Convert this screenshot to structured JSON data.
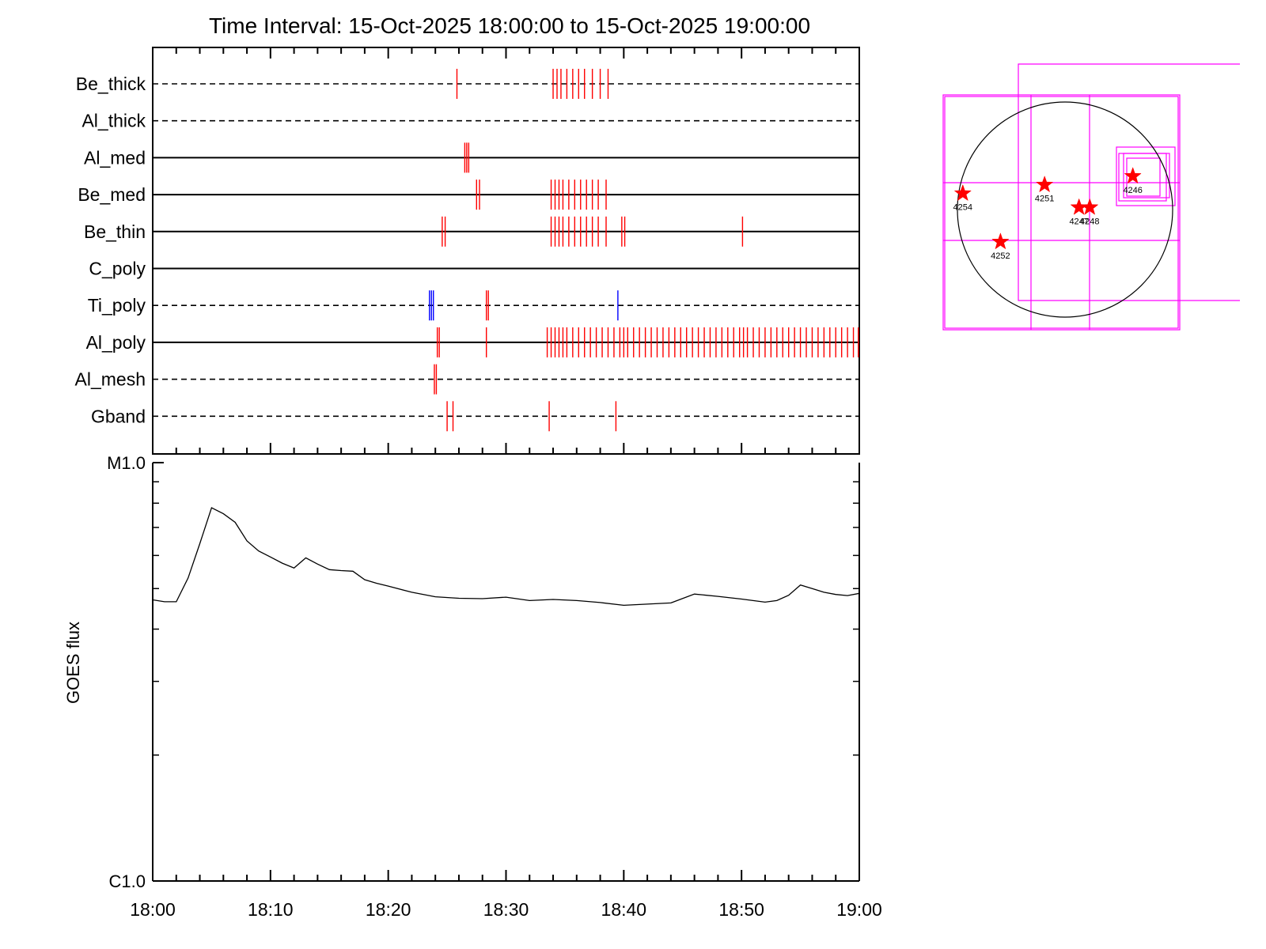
{
  "chart_data": [
    {
      "type": "timeline",
      "title": "Time Interval: 15-Oct-2025 18:00:00 to 15-Oct-2025 19:00:00",
      "x_range": [
        "18:00",
        "19:00"
      ],
      "rows": [
        {
          "label": "Be_thick",
          "line": "dashed",
          "ticks": [
            {
              "t": "18:25:50",
              "c": "red"
            },
            {
              "t": "18:34:00",
              "c": "red"
            },
            {
              "t": "18:34:20",
              "c": "red"
            },
            {
              "t": "18:34:40",
              "c": "red"
            },
            {
              "t": "18:35:10",
              "c": "red"
            },
            {
              "t": "18:35:40",
              "c": "red"
            },
            {
              "t": "18:36:10",
              "c": "red"
            },
            {
              "t": "18:36:40",
              "c": "red"
            },
            {
              "t": "18:37:20",
              "c": "red"
            },
            {
              "t": "18:38:00",
              "c": "red"
            },
            {
              "t": "18:38:40",
              "c": "red"
            }
          ]
        },
        {
          "label": "Al_thick",
          "line": "dashed",
          "ticks": []
        },
        {
          "label": "Al_med",
          "line": "solid",
          "ticks": [
            {
              "t": "18:26:30",
              "c": "red"
            },
            {
              "t": "18:26:40",
              "c": "red"
            },
            {
              "t": "18:26:50",
              "c": "red"
            }
          ]
        },
        {
          "label": "Be_med",
          "line": "solid",
          "ticks": [
            {
              "t": "18:27:30",
              "c": "red"
            },
            {
              "t": "18:27:45",
              "c": "red"
            },
            {
              "t": "18:33:50",
              "c": "red"
            },
            {
              "t": "18:34:10",
              "c": "red"
            },
            {
              "t": "18:34:30",
              "c": "red"
            },
            {
              "t": "18:34:50",
              "c": "red"
            },
            {
              "t": "18:35:20",
              "c": "red"
            },
            {
              "t": "18:35:50",
              "c": "red"
            },
            {
              "t": "18:36:20",
              "c": "red"
            },
            {
              "t": "18:36:50",
              "c": "red"
            },
            {
              "t": "18:37:20",
              "c": "red"
            },
            {
              "t": "18:37:50",
              "c": "red"
            },
            {
              "t": "18:38:30",
              "c": "red"
            }
          ]
        },
        {
          "label": "Be_thin",
          "line": "solid",
          "ticks": [
            {
              "t": "18:24:35",
              "c": "red"
            },
            {
              "t": "18:24:50",
              "c": "red"
            },
            {
              "t": "18:33:50",
              "c": "red"
            },
            {
              "t": "18:34:10",
              "c": "red"
            },
            {
              "t": "18:34:30",
              "c": "red"
            },
            {
              "t": "18:34:50",
              "c": "red"
            },
            {
              "t": "18:35:20",
              "c": "red"
            },
            {
              "t": "18:35:50",
              "c": "red"
            },
            {
              "t": "18:36:20",
              "c": "red"
            },
            {
              "t": "18:36:50",
              "c": "red"
            },
            {
              "t": "18:37:20",
              "c": "red"
            },
            {
              "t": "18:37:50",
              "c": "red"
            },
            {
              "t": "18:38:30",
              "c": "red"
            },
            {
              "t": "18:39:50",
              "c": "red"
            },
            {
              "t": "18:40:05",
              "c": "red"
            },
            {
              "t": "18:50:05",
              "c": "red"
            }
          ]
        },
        {
          "label": "C_poly",
          "line": "solid",
          "ticks": []
        },
        {
          "label": "Ti_poly",
          "line": "dashed",
          "ticks": [
            {
              "t": "18:23:30",
              "c": "blue"
            },
            {
              "t": "18:23:40",
              "c": "blue"
            },
            {
              "t": "18:23:50",
              "c": "blue"
            },
            {
              "t": "18:28:20",
              "c": "red"
            },
            {
              "t": "18:28:30",
              "c": "red"
            },
            {
              "t": "18:39:30",
              "c": "blue"
            }
          ]
        },
        {
          "label": "Al_poly",
          "line": "solid",
          "ticks": [
            {
              "t": "18:24:10",
              "c": "red"
            },
            {
              "t": "18:24:20",
              "c": "red"
            },
            {
              "t": "18:28:20",
              "c": "red"
            },
            {
              "t": "18:33:30",
              "c": "red"
            },
            {
              "t": "18:33:50",
              "c": "red"
            },
            {
              "t": "18:34:10",
              "c": "red"
            },
            {
              "t": "18:34:30",
              "c": "red"
            },
            {
              "t": "18:34:50",
              "c": "red"
            },
            {
              "t": "18:35:10",
              "c": "red"
            },
            {
              "t": "18:35:40",
              "c": "red"
            },
            {
              "t": "18:36:10",
              "c": "red"
            },
            {
              "t": "18:36:40",
              "c": "red"
            },
            {
              "t": "18:37:10",
              "c": "red"
            },
            {
              "t": "18:37:40",
              "c": "red"
            },
            {
              "t": "18:38:10",
              "c": "red"
            },
            {
              "t": "18:38:40",
              "c": "red"
            },
            {
              "t": "18:39:10",
              "c": "red"
            },
            {
              "t": "18:39:40",
              "c": "red"
            },
            {
              "t": "18:40:00",
              "c": "red"
            },
            {
              "t": "18:40:20",
              "c": "red"
            },
            {
              "t": "18:40:50",
              "c": "red"
            },
            {
              "t": "18:41:20",
              "c": "red"
            },
            {
              "t": "18:41:50",
              "c": "red"
            },
            {
              "t": "18:42:20",
              "c": "red"
            },
            {
              "t": "18:42:50",
              "c": "red"
            },
            {
              "t": "18:43:20",
              "c": "red"
            },
            {
              "t": "18:43:50",
              "c": "red"
            },
            {
              "t": "18:44:20",
              "c": "red"
            },
            {
              "t": "18:44:50",
              "c": "red"
            },
            {
              "t": "18:45:20",
              "c": "red"
            },
            {
              "t": "18:45:50",
              "c": "red"
            },
            {
              "t": "18:46:20",
              "c": "red"
            },
            {
              "t": "18:46:50",
              "c": "red"
            },
            {
              "t": "18:47:20",
              "c": "red"
            },
            {
              "t": "18:47:50",
              "c": "red"
            },
            {
              "t": "18:48:20",
              "c": "red"
            },
            {
              "t": "18:48:50",
              "c": "red"
            },
            {
              "t": "18:49:20",
              "c": "red"
            },
            {
              "t": "18:49:50",
              "c": "red"
            },
            {
              "t": "18:50:10",
              "c": "red"
            },
            {
              "t": "18:50:30",
              "c": "red"
            },
            {
              "t": "18:51:00",
              "c": "red"
            },
            {
              "t": "18:51:30",
              "c": "red"
            },
            {
              "t": "18:52:00",
              "c": "red"
            },
            {
              "t": "18:52:30",
              "c": "red"
            },
            {
              "t": "18:53:00",
              "c": "red"
            },
            {
              "t": "18:53:30",
              "c": "red"
            },
            {
              "t": "18:54:00",
              "c": "red"
            },
            {
              "t": "18:54:30",
              "c": "red"
            },
            {
              "t": "18:55:00",
              "c": "red"
            },
            {
              "t": "18:55:30",
              "c": "red"
            },
            {
              "t": "18:56:00",
              "c": "red"
            },
            {
              "t": "18:56:30",
              "c": "red"
            },
            {
              "t": "18:57:00",
              "c": "red"
            },
            {
              "t": "18:57:30",
              "c": "red"
            },
            {
              "t": "18:58:00",
              "c": "red"
            },
            {
              "t": "18:58:30",
              "c": "red"
            },
            {
              "t": "18:59:00",
              "c": "red"
            },
            {
              "t": "18:59:30",
              "c": "red"
            },
            {
              "t": "18:59:55",
              "c": "red"
            }
          ]
        },
        {
          "label": "Al_mesh",
          "line": "dashed",
          "ticks": [
            {
              "t": "18:23:55",
              "c": "red"
            },
            {
              "t": "18:24:05",
              "c": "red"
            }
          ]
        },
        {
          "label": "Gband",
          "line": "dashed",
          "ticks": [
            {
              "t": "18:25:00",
              "c": "red"
            },
            {
              "t": "18:25:30",
              "c": "red"
            },
            {
              "t": "18:33:40",
              "c": "red"
            },
            {
              "t": "18:39:20",
              "c": "red"
            }
          ]
        }
      ]
    },
    {
      "type": "line",
      "ylabel": "GOES flux",
      "y_tick_labels": [
        "M1.0",
        "C1.0"
      ],
      "x_tick_labels": [
        "18:00",
        "18:10",
        "18:20",
        "18:30",
        "18:40",
        "18:50",
        "19:00"
      ],
      "y_scale": "log",
      "ylim": [
        1e-06,
        1e-05
      ],
      "series": [
        {
          "x": [
            "18:00",
            "18:01",
            "18:02",
            "18:03",
            "18:04",
            "18:05",
            "18:06",
            "18:07",
            "18:08",
            "18:09",
            "18:10",
            "18:11",
            "18:12",
            "18:13",
            "18:14",
            "18:15",
            "18:16",
            "18:17",
            "18:18",
            "18:19",
            "18:20",
            "18:22",
            "18:24",
            "18:26",
            "18:28",
            "18:30",
            "18:32",
            "18:34",
            "18:36",
            "18:38",
            "18:40",
            "18:42",
            "18:44",
            "18:46",
            "18:48",
            "18:50",
            "18:52",
            "18:53",
            "18:54",
            "18:55",
            "18:56",
            "18:57",
            "18:58",
            "18:59",
            "19:00"
          ],
          "y": [
            4.7e-06,
            4.65e-06,
            4.65e-06,
            5.3e-06,
            6.4e-06,
            7.8e-06,
            7.55e-06,
            7.2e-06,
            6.5e-06,
            6.15e-06,
            5.95e-06,
            5.75e-06,
            5.6e-06,
            5.92e-06,
            5.72e-06,
            5.55e-06,
            5.52e-06,
            5.5e-06,
            5.25e-06,
            5.15e-06,
            5.07e-06,
            4.9e-06,
            4.78e-06,
            4.74e-06,
            4.73e-06,
            4.77e-06,
            4.68e-06,
            4.71e-06,
            4.68e-06,
            4.63e-06,
            4.56e-06,
            4.59e-06,
            4.62e-06,
            4.85e-06,
            4.79e-06,
            4.72e-06,
            4.64e-06,
            4.68e-06,
            4.82e-06,
            5.1e-06,
            5e-06,
            4.9e-06,
            4.84e-06,
            4.81e-06,
            4.87e-06
          ]
        }
      ]
    },
    {
      "type": "scatter",
      "points": [
        {
          "label": "4254",
          "x": -0.95,
          "y": 0.15
        },
        {
          "label": "4251",
          "x": -0.19,
          "y": 0.23
        },
        {
          "label": "4246",
          "x": 0.63,
          "y": 0.31
        },
        {
          "label": "4247",
          "x": 0.13,
          "y": 0.02
        },
        {
          "label": "4248",
          "x": 0.23,
          "y": 0.02
        },
        {
          "label": "4252",
          "x": -0.6,
          "y": -0.3
        }
      ],
      "colors": {
        "disk": "#000000",
        "boxes": "#ff00ff",
        "markers": "#ff0000"
      }
    }
  ]
}
